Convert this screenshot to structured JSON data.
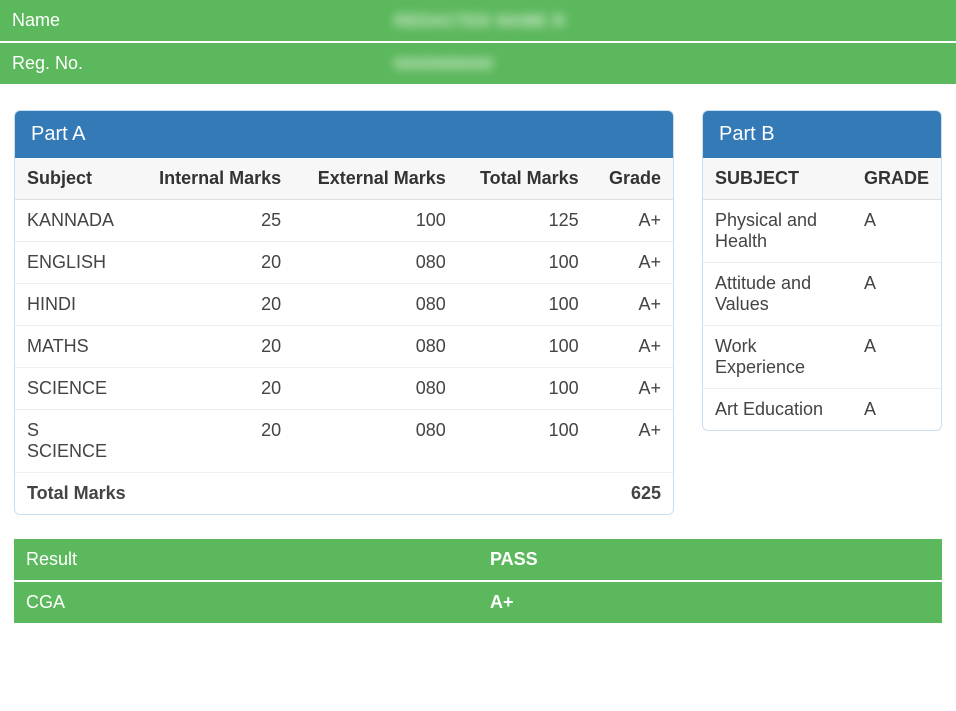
{
  "info": {
    "name_label": "Name",
    "name_value": "REDACTED NAME R",
    "reg_label": "Reg. No.",
    "reg_value": "0000000000"
  },
  "partA": {
    "title": "Part A",
    "columns": [
      "Subject",
      "Internal Marks",
      "External Marks",
      "Total Marks",
      "Grade"
    ],
    "rows": [
      {
        "subject": "KANNADA",
        "internal": "25",
        "external": "100",
        "total": "125",
        "grade": "A+"
      },
      {
        "subject": "ENGLISH",
        "internal": "20",
        "external": "080",
        "total": "100",
        "grade": "A+"
      },
      {
        "subject": "HINDI",
        "internal": "20",
        "external": "080",
        "total": "100",
        "grade": "A+"
      },
      {
        "subject": "MATHS",
        "internal": "20",
        "external": "080",
        "total": "100",
        "grade": "A+"
      },
      {
        "subject": "SCIENCE",
        "internal": "20",
        "external": "080",
        "total": "100",
        "grade": "A+"
      },
      {
        "subject": "S SCIENCE",
        "internal": "20",
        "external": "080",
        "total": "100",
        "grade": "A+"
      }
    ],
    "total_label": "Total Marks",
    "total_value": "625"
  },
  "partB": {
    "title": "Part B",
    "columns": [
      "SUBJECT",
      "GRADE"
    ],
    "rows": [
      {
        "subject": "Physical and Health",
        "grade": "A"
      },
      {
        "subject": "Attitude and Values",
        "grade": "A"
      },
      {
        "subject": "Work Experience",
        "grade": "A"
      },
      {
        "subject": "Art Education",
        "grade": "A"
      }
    ]
  },
  "result": {
    "rows": [
      {
        "label": "Result",
        "value": "PASS"
      },
      {
        "label": "CGA",
        "value": "A+"
      }
    ]
  },
  "colors": {
    "green": "#5cb85c",
    "blue": "#337ab7",
    "panel_border": "#c9dff0",
    "row_border": "#eeeeee",
    "header_bg": "#f7f7f7"
  }
}
